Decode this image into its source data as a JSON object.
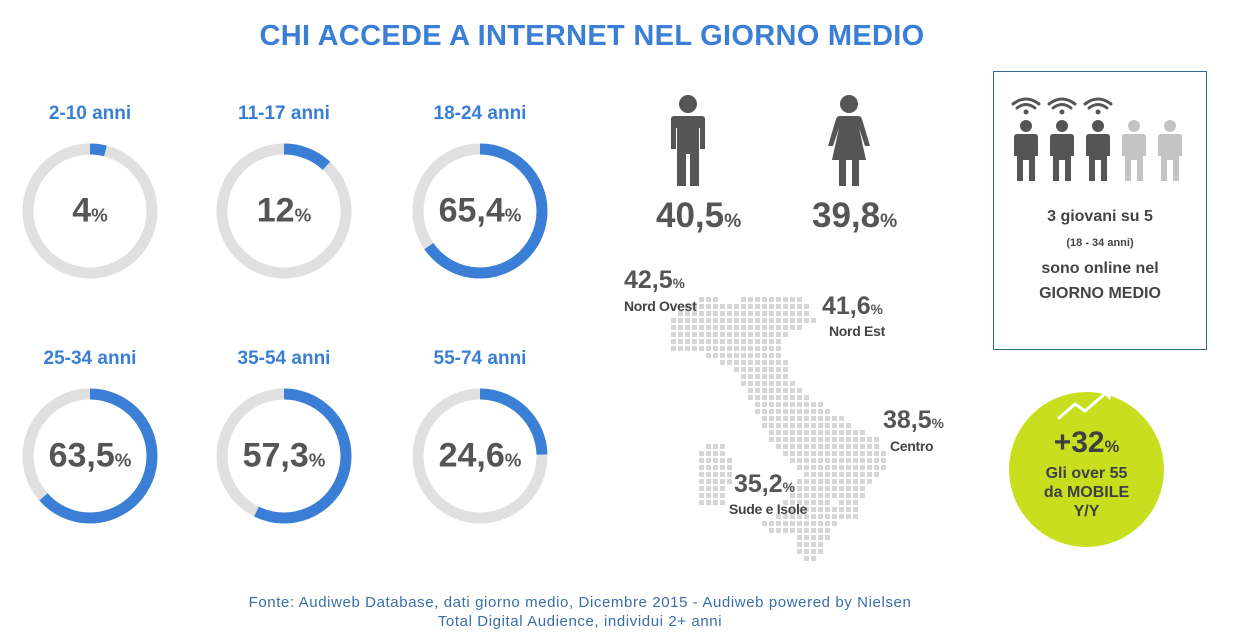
{
  "title": "CHI ACCEDE A INTERNET NEL GIORNO MEDIO",
  "chart_data": {
    "type": "donut",
    "categories": [
      "2-10 anni",
      "11-17 anni",
      "18-24 anni",
      "25-34 anni",
      "35-54 anni",
      "55-74 anni"
    ],
    "values": [
      4,
      12,
      65.4,
      63.5,
      57.3,
      24.6
    ],
    "labels": [
      "4",
      "12",
      "65,4",
      "63,5",
      "57,3",
      "24,6"
    ],
    "unit": "%",
    "colors": {
      "fill": "#3a7fd5",
      "track": "#e0e0e0"
    }
  },
  "gender": {
    "male": {
      "value": "40,5",
      "unit": "%",
      "icon": "male-person-icon"
    },
    "female": {
      "value": "39,8",
      "unit": "%",
      "icon": "female-person-icon"
    }
  },
  "regions": [
    {
      "value": "42,5",
      "unit": "%",
      "name": "Nord Ovest"
    },
    {
      "value": "41,6",
      "unit": "%",
      "name": "Nord Est"
    },
    {
      "value": "38,5",
      "unit": "%",
      "name": "Centro"
    },
    {
      "value": "35,2",
      "unit": "%",
      "name": "Sude e Isole"
    }
  ],
  "youth_box": {
    "online_count": 3,
    "total_count": 5,
    "line1": "3 giovani su 5",
    "line2": "(18 - 34 anni)",
    "line3": "sono online nel",
    "line4": "GIORNO  MEDIO"
  },
  "mobile": {
    "value": "+32",
    "unit": "%",
    "line1": "Gli over 55",
    "line2": "da MOBILE",
    "line3": "Y/Y",
    "icon": "trend-up-arrow-icon",
    "color": "#c8de1e"
  },
  "source": {
    "line1": "Fonte:  Audiweb  Database,  dati giorno medio,  Dicembre  2015  - Audiweb  powered  by Nielsen",
    "line2": "Total  Digital  Audience,  individui  2+ anni"
  }
}
